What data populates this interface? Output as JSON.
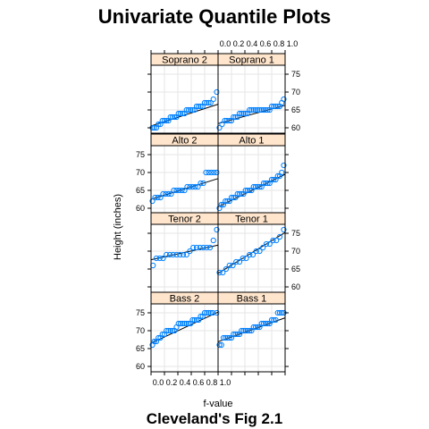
{
  "title": "Univariate Quantile Plots",
  "subtitle": "Cleveland's Fig 2.1",
  "xlabel": "f-value",
  "ylabel": "Height (inches)",
  "colors": {
    "point": "#0080ff",
    "strip": "#ffe5cc",
    "line": "#000000",
    "grid": "#e6e6e6",
    "frame": "#000000"
  },
  "chart_data": {
    "type": "scatter",
    "layout": "lattice 2 columns x 4 rows, reference line per panel",
    "xlim": [
      0,
      1
    ],
    "ylim": [
      58.5,
      77.5
    ],
    "x_tick_values": [
      0.0,
      0.2,
      0.4,
      0.6,
      0.8,
      1.0
    ],
    "x_tick_labels": [
      "0.0",
      "0.2",
      "0.4",
      "0.6",
      "0.8",
      "1.0"
    ],
    "y_tick_values": [
      60,
      65,
      70,
      75
    ],
    "y_tick_labels": [
      "60",
      "65",
      "70",
      "75"
    ],
    "grid": true,
    "panels": [
      {
        "name": "Soprano 2",
        "row": 0,
        "col": 0,
        "line": [
          [
            0.0,
            60.5
          ],
          [
            1.0,
            66.6
          ]
        ],
        "points": [
          [
            0.02,
            60
          ],
          [
            0.05,
            60
          ],
          [
            0.08,
            60
          ],
          [
            0.11,
            61
          ],
          [
            0.14,
            61
          ],
          [
            0.17,
            62
          ],
          [
            0.2,
            62
          ],
          [
            0.23,
            62
          ],
          [
            0.26,
            62
          ],
          [
            0.29,
            63
          ],
          [
            0.32,
            63
          ],
          [
            0.35,
            63
          ],
          [
            0.38,
            63
          ],
          [
            0.41,
            64
          ],
          [
            0.44,
            64
          ],
          [
            0.47,
            64
          ],
          [
            0.5,
            64
          ],
          [
            0.53,
            65
          ],
          [
            0.56,
            65
          ],
          [
            0.59,
            65
          ],
          [
            0.62,
            65
          ],
          [
            0.65,
            65
          ],
          [
            0.68,
            66
          ],
          [
            0.71,
            66
          ],
          [
            0.74,
            66
          ],
          [
            0.77,
            66
          ],
          [
            0.8,
            67
          ],
          [
            0.83,
            67
          ],
          [
            0.86,
            67
          ],
          [
            0.89,
            67
          ],
          [
            0.93,
            68
          ],
          [
            0.98,
            70
          ]
        ]
      },
      {
        "name": "Soprano 1",
        "row": 0,
        "col": 1,
        "line": [
          [
            0.0,
            61.2
          ],
          [
            1.0,
            66.3
          ]
        ],
        "points": [
          [
            0.02,
            60
          ],
          [
            0.06,
            61
          ],
          [
            0.1,
            62
          ],
          [
            0.13,
            62
          ],
          [
            0.17,
            62
          ],
          [
            0.2,
            62
          ],
          [
            0.23,
            63
          ],
          [
            0.26,
            63
          ],
          [
            0.29,
            63
          ],
          [
            0.32,
            64
          ],
          [
            0.35,
            64
          ],
          [
            0.38,
            64
          ],
          [
            0.41,
            64
          ],
          [
            0.44,
            64
          ],
          [
            0.47,
            65
          ],
          [
            0.5,
            65
          ],
          [
            0.53,
            65
          ],
          [
            0.56,
            65
          ],
          [
            0.59,
            65
          ],
          [
            0.62,
            65
          ],
          [
            0.65,
            65
          ],
          [
            0.68,
            65
          ],
          [
            0.71,
            65
          ],
          [
            0.74,
            65
          ],
          [
            0.77,
            65
          ],
          [
            0.8,
            66
          ],
          [
            0.83,
            66
          ],
          [
            0.86,
            66
          ],
          [
            0.89,
            66
          ],
          [
            0.92,
            66
          ],
          [
            0.95,
            67
          ],
          [
            0.98,
            68
          ]
        ]
      },
      {
        "name": "Alto 2",
        "row": 1,
        "col": 0,
        "line": [
          [
            0.0,
            62.5
          ],
          [
            1.0,
            68.3
          ]
        ],
        "points": [
          [
            0.02,
            62
          ],
          [
            0.06,
            63
          ],
          [
            0.1,
            63
          ],
          [
            0.14,
            63
          ],
          [
            0.18,
            64
          ],
          [
            0.22,
            64
          ],
          [
            0.26,
            64
          ],
          [
            0.3,
            64
          ],
          [
            0.34,
            65
          ],
          [
            0.38,
            65
          ],
          [
            0.42,
            65
          ],
          [
            0.46,
            65
          ],
          [
            0.5,
            65
          ],
          [
            0.54,
            66
          ],
          [
            0.58,
            66
          ],
          [
            0.62,
            66
          ],
          [
            0.66,
            66
          ],
          [
            0.7,
            66
          ],
          [
            0.74,
            67
          ],
          [
            0.78,
            67
          ],
          [
            0.82,
            70
          ],
          [
            0.86,
            70
          ],
          [
            0.9,
            70
          ],
          [
            0.94,
            70
          ],
          [
            0.98,
            70
          ]
        ]
      },
      {
        "name": "Alto 1",
        "row": 1,
        "col": 1,
        "line": [
          [
            0.0,
            60.4
          ],
          [
            1.0,
            69.5
          ]
        ],
        "points": [
          [
            0.02,
            60
          ],
          [
            0.05,
            61
          ],
          [
            0.08,
            61
          ],
          [
            0.11,
            62
          ],
          [
            0.14,
            62
          ],
          [
            0.17,
            62
          ],
          [
            0.2,
            63
          ],
          [
            0.23,
            63
          ],
          [
            0.26,
            63
          ],
          [
            0.29,
            64
          ],
          [
            0.32,
            64
          ],
          [
            0.35,
            64
          ],
          [
            0.38,
            64
          ],
          [
            0.41,
            65
          ],
          [
            0.44,
            65
          ],
          [
            0.47,
            65
          ],
          [
            0.5,
            65
          ],
          [
            0.53,
            66
          ],
          [
            0.56,
            66
          ],
          [
            0.59,
            66
          ],
          [
            0.62,
            66
          ],
          [
            0.65,
            66
          ],
          [
            0.68,
            67
          ],
          [
            0.71,
            67
          ],
          [
            0.74,
            67
          ],
          [
            0.77,
            67
          ],
          [
            0.8,
            68
          ],
          [
            0.83,
            68
          ],
          [
            0.86,
            68
          ],
          [
            0.89,
            69
          ],
          [
            0.92,
            69
          ],
          [
            0.95,
            70
          ],
          [
            0.98,
            72
          ]
        ]
      },
      {
        "name": "Tenor 2",
        "row": 2,
        "col": 0,
        "line": [
          [
            0.0,
            67.6
          ],
          [
            1.0,
            71.7
          ]
        ],
        "points": [
          [
            0.03,
            66
          ],
          [
            0.08,
            68
          ],
          [
            0.13,
            68
          ],
          [
            0.18,
            68
          ],
          [
            0.23,
            69
          ],
          [
            0.28,
            69
          ],
          [
            0.33,
            69
          ],
          [
            0.38,
            69
          ],
          [
            0.43,
            69
          ],
          [
            0.48,
            69
          ],
          [
            0.53,
            69
          ],
          [
            0.58,
            70
          ],
          [
            0.63,
            71
          ],
          [
            0.68,
            71
          ],
          [
            0.73,
            71
          ],
          [
            0.78,
            71
          ],
          [
            0.83,
            71
          ],
          [
            0.88,
            71
          ],
          [
            0.93,
            73
          ],
          [
            0.98,
            76
          ]
        ]
      },
      {
        "name": "Tenor 1",
        "row": 2,
        "col": 1,
        "line": [
          [
            0.0,
            63.8
          ],
          [
            1.0,
            75.2
          ]
        ],
        "points": [
          [
            0.02,
            64
          ],
          [
            0.07,
            64
          ],
          [
            0.12,
            65
          ],
          [
            0.17,
            66
          ],
          [
            0.22,
            66
          ],
          [
            0.27,
            67
          ],
          [
            0.32,
            67
          ],
          [
            0.37,
            68
          ],
          [
            0.42,
            68
          ],
          [
            0.47,
            69
          ],
          [
            0.52,
            69
          ],
          [
            0.57,
            70
          ],
          [
            0.62,
            70
          ],
          [
            0.67,
            71
          ],
          [
            0.72,
            72
          ],
          [
            0.77,
            72
          ],
          [
            0.82,
            73
          ],
          [
            0.87,
            73
          ],
          [
            0.92,
            74
          ],
          [
            0.98,
            76
          ]
        ]
      },
      {
        "name": "Bass 2",
        "row": 3,
        "col": 0,
        "line": [
          [
            0.0,
            66.5
          ],
          [
            1.0,
            75.2
          ]
        ],
        "points": [
          [
            0.02,
            66
          ],
          [
            0.05,
            67
          ],
          [
            0.08,
            67
          ],
          [
            0.11,
            68
          ],
          [
            0.14,
            68
          ],
          [
            0.17,
            69
          ],
          [
            0.2,
            69
          ],
          [
            0.23,
            70
          ],
          [
            0.26,
            70
          ],
          [
            0.29,
            70
          ],
          [
            0.32,
            70
          ],
          [
            0.35,
            70
          ],
          [
            0.38,
            71
          ],
          [
            0.41,
            72
          ],
          [
            0.44,
            72
          ],
          [
            0.47,
            72
          ],
          [
            0.5,
            72
          ],
          [
            0.53,
            72
          ],
          [
            0.56,
            72
          ],
          [
            0.59,
            72
          ],
          [
            0.62,
            73
          ],
          [
            0.65,
            73
          ],
          [
            0.68,
            73
          ],
          [
            0.71,
            73
          ],
          [
            0.74,
            74
          ],
          [
            0.77,
            74
          ],
          [
            0.8,
            75
          ],
          [
            0.83,
            75
          ],
          [
            0.86,
            75
          ],
          [
            0.89,
            75
          ],
          [
            0.92,
            75
          ],
          [
            0.98,
            75
          ]
        ]
      },
      {
        "name": "Bass 1",
        "row": 3,
        "col": 1,
        "line": [
          [
            0.0,
            66.9
          ],
          [
            1.0,
            73.6
          ]
        ],
        "points": [
          [
            0.02,
            66
          ],
          [
            0.05,
            66
          ],
          [
            0.08,
            68
          ],
          [
            0.11,
            68
          ],
          [
            0.14,
            68
          ],
          [
            0.17,
            68
          ],
          [
            0.2,
            68
          ],
          [
            0.23,
            69
          ],
          [
            0.26,
            69
          ],
          [
            0.29,
            69
          ],
          [
            0.32,
            69
          ],
          [
            0.35,
            70
          ],
          [
            0.38,
            70
          ],
          [
            0.41,
            70
          ],
          [
            0.44,
            70
          ],
          [
            0.47,
            70
          ],
          [
            0.5,
            70
          ],
          [
            0.53,
            71
          ],
          [
            0.56,
            71
          ],
          [
            0.59,
            71
          ],
          [
            0.62,
            71
          ],
          [
            0.65,
            72
          ],
          [
            0.68,
            72
          ],
          [
            0.71,
            72
          ],
          [
            0.74,
            72
          ],
          [
            0.77,
            72
          ],
          [
            0.8,
            73
          ],
          [
            0.83,
            73
          ],
          [
            0.86,
            73
          ],
          [
            0.89,
            75
          ],
          [
            0.92,
            75
          ],
          [
            0.95,
            75
          ],
          [
            0.98,
            75
          ]
        ]
      }
    ]
  }
}
